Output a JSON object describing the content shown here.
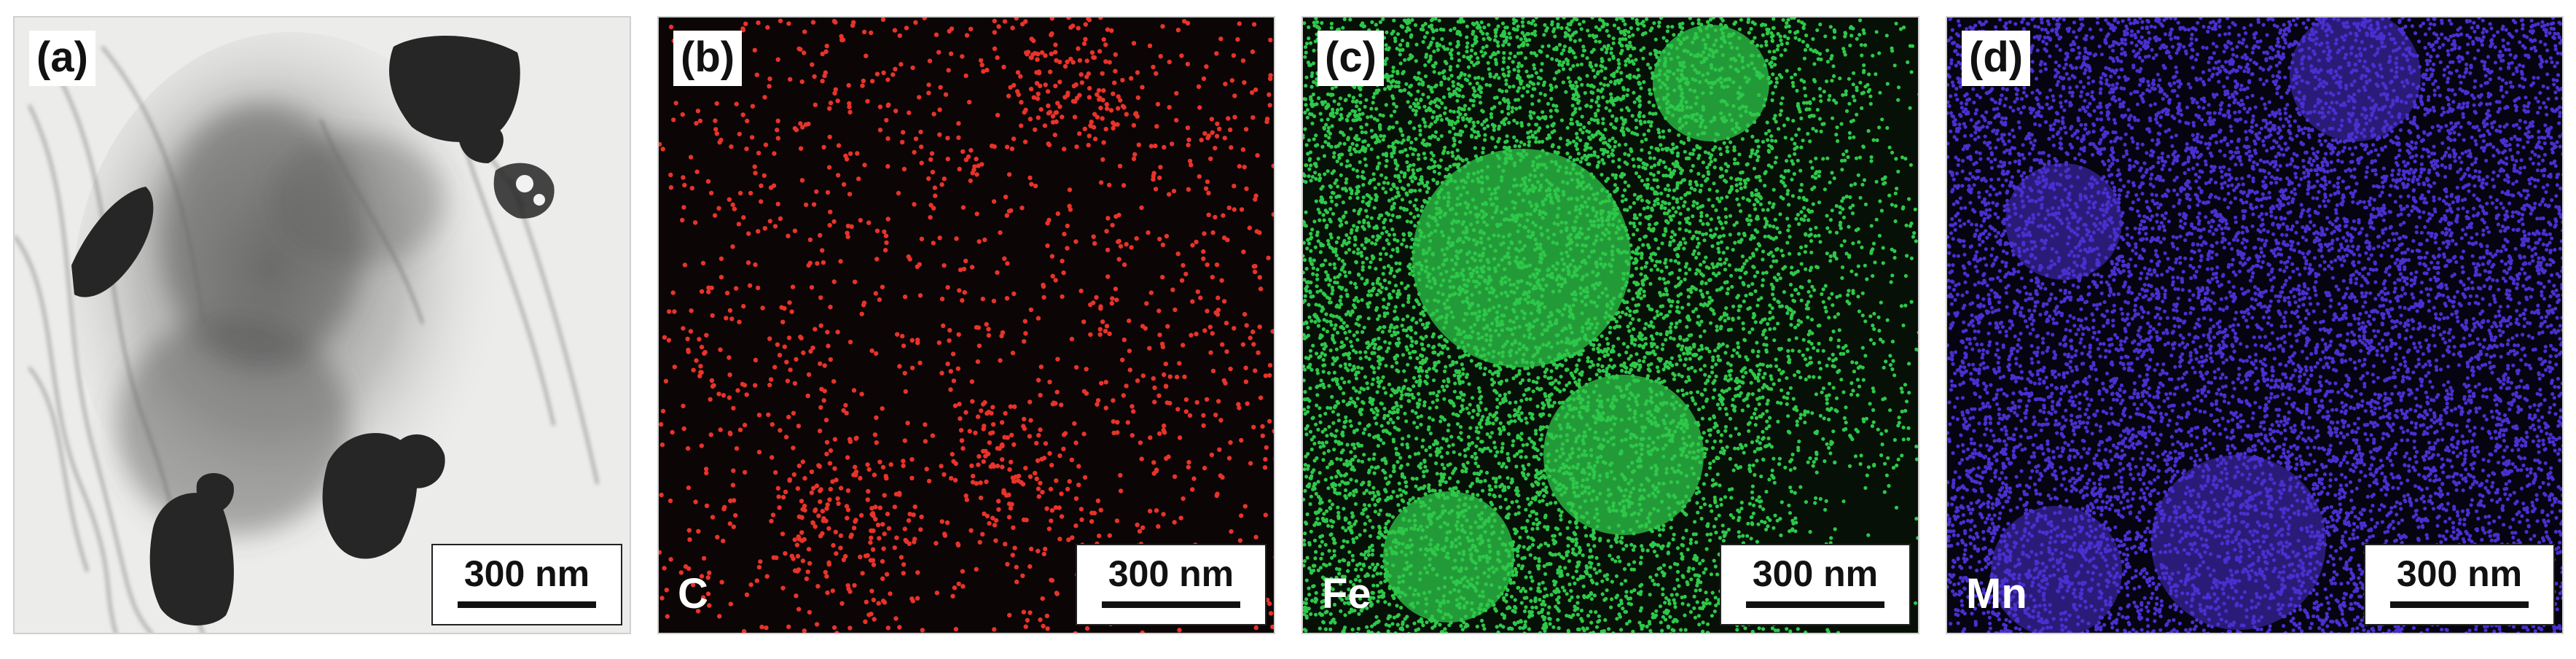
{
  "panels": [
    {
      "label": "(a)",
      "element": "",
      "scale": "300 nm",
      "color": "#1a1a1a"
    },
    {
      "label": "(b)",
      "element": "C",
      "scale": "300 nm",
      "color": "#e8332a"
    },
    {
      "label": "(c)",
      "element": "Fe",
      "scale": "300 nm",
      "color": "#2ec84a"
    },
    {
      "label": "(d)",
      "element": "Mn",
      "scale": "300 nm",
      "color": "#4a2fd0"
    }
  ]
}
